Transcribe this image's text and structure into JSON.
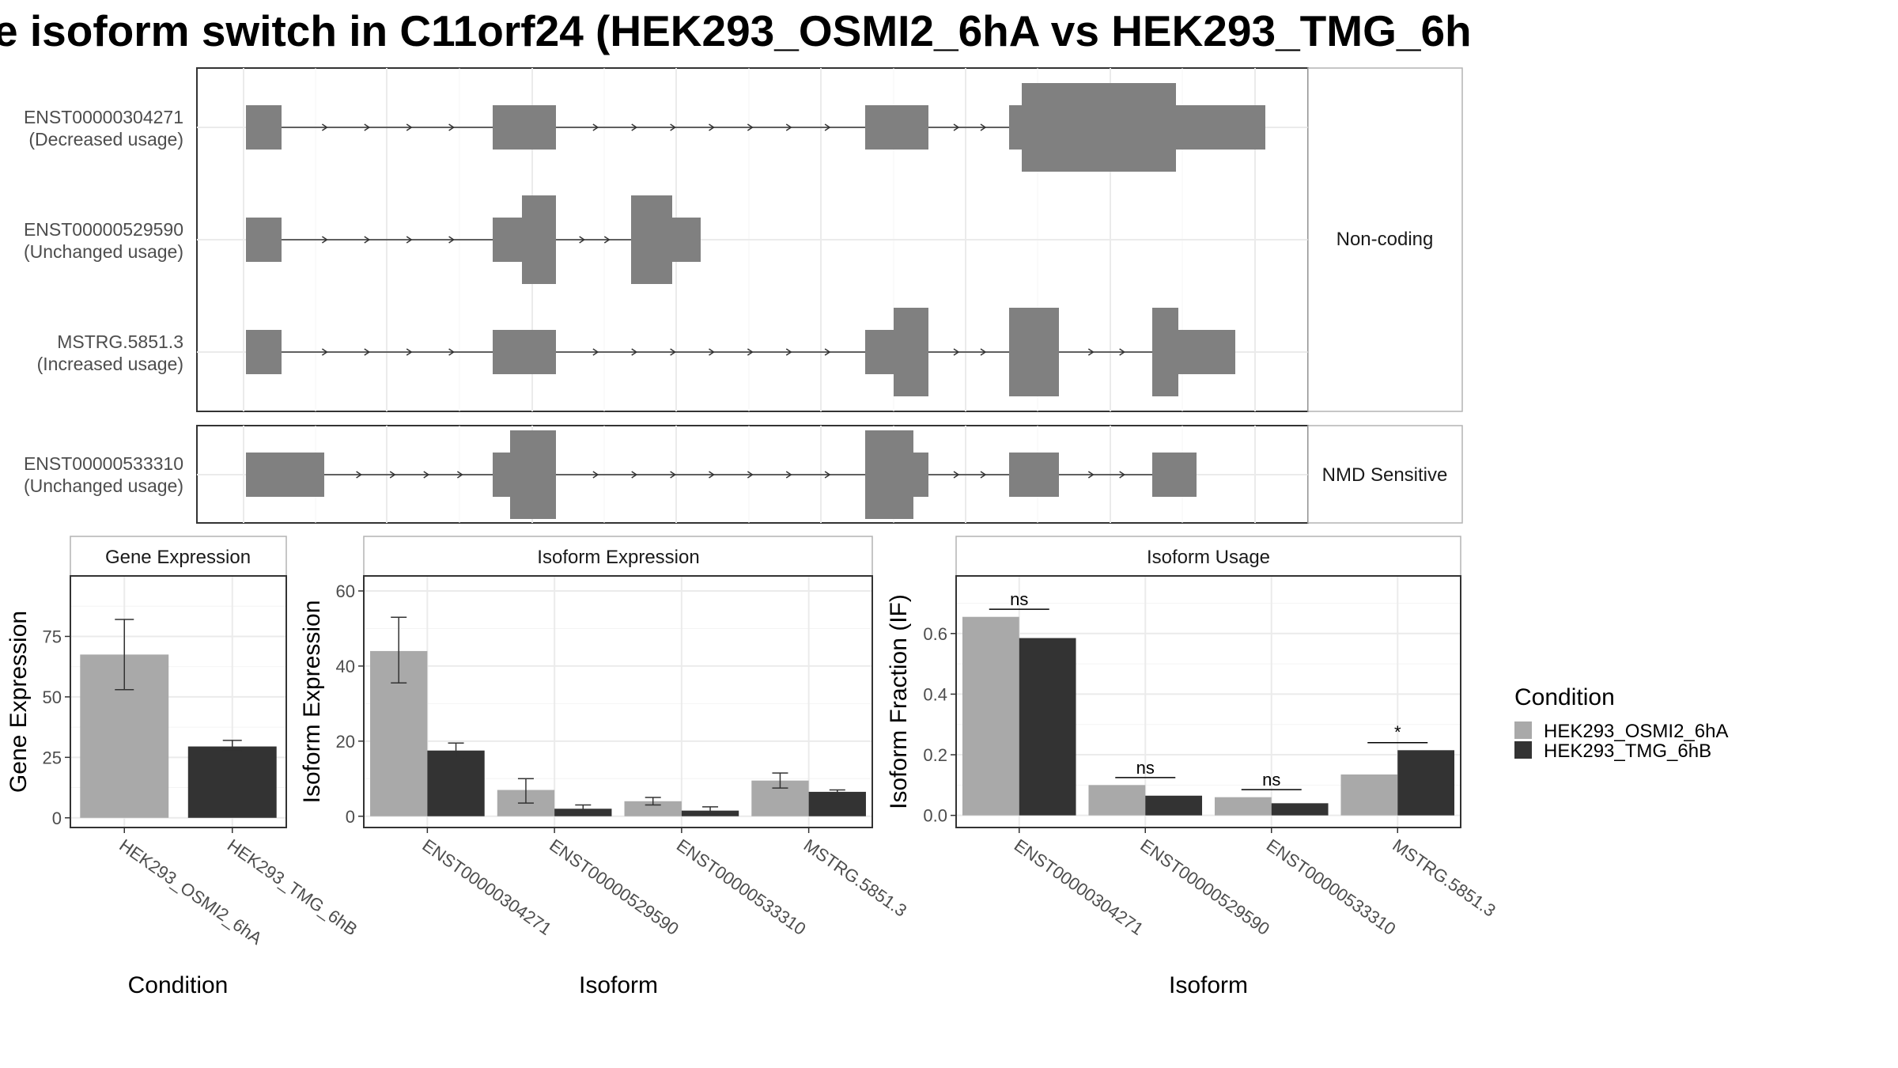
{
  "title": "e isoform switch in C11orf24 (HEK293_OSMI2_6hA vs HEK293_TMG_6h",
  "colors": {
    "condA": "#a9a9a9",
    "condB": "#333333",
    "exon": "#808080",
    "grid": "#ebebeb",
    "panel_border": "#333333",
    "strip_border": "#b3b3b3"
  },
  "structure": {
    "groups": [
      {
        "label": "Non-coding",
        "transcripts": [
          {
            "id": "ENST00000304271",
            "usage": "(Decreased usage)"
          },
          {
            "id": "ENST00000529590",
            "usage": "(Unchanged usage)"
          },
          {
            "id": "MSTRG.5851.3",
            "usage": "(Increased usage)"
          }
        ]
      },
      {
        "label": "NMD Sensitive",
        "transcripts": [
          {
            "id": "ENST00000533310",
            "usage": "(Unchanged usage)"
          }
        ]
      }
    ]
  },
  "legend": {
    "title": "Condition",
    "items": [
      "HEK293_OSMI2_6hA",
      "HEK293_TMG_6hB"
    ]
  },
  "chart_data": [
    {
      "type": "bar",
      "strip": "Gene Expression",
      "xlabel": "Condition",
      "ylabel": "Gene Expression",
      "categories": [
        "HEK293_OSMI2_6hA",
        "HEK293_TMG_6hB"
      ],
      "values": [
        67.5,
        29.5
      ],
      "errors": [
        [
          53,
          82
        ],
        [
          27.5,
          32
        ]
      ],
      "ylim": [
        -4,
        100
      ],
      "yticks": [
        0,
        25,
        50,
        75
      ]
    },
    {
      "type": "bar",
      "strip": "Isoform Expression",
      "xlabel": "Isoform",
      "ylabel": "Isoform Expression",
      "categories": [
        "ENST00000304271",
        "ENST00000529590",
        "ENST00000533310",
        "MSTRG.5851.3"
      ],
      "series": [
        {
          "name": "HEK293_OSMI2_6hA",
          "values": [
            44,
            7,
            4,
            9.5
          ],
          "errors": [
            [
              35.5,
              53
            ],
            [
              3.5,
              10
            ],
            [
              3,
              5
            ],
            [
              7.5,
              11.5
            ]
          ]
        },
        {
          "name": "HEK293_TMG_6hB",
          "values": [
            17.5,
            2,
            1.5,
            6.5
          ],
          "errors": [
            [
              15.5,
              19.5
            ],
            [
              1,
              3
            ],
            [
              0.5,
              2.5
            ],
            [
              5.5,
              7
            ]
          ]
        }
      ],
      "ylim": [
        -3,
        64
      ],
      "yticks": [
        0,
        20,
        40,
        60
      ]
    },
    {
      "type": "bar",
      "strip": "Isoform Usage",
      "xlabel": "Isoform",
      "ylabel": "Isoform Fraction (IF)",
      "categories": [
        "ENST00000304271",
        "ENST00000529590",
        "ENST00000533310",
        "MSTRG.5851.3"
      ],
      "series": [
        {
          "name": "HEK293_OSMI2_6hA",
          "values": [
            0.655,
            0.1,
            0.06,
            0.135
          ]
        },
        {
          "name": "HEK293_TMG_6hB",
          "values": [
            0.585,
            0.065,
            0.04,
            0.215
          ]
        }
      ],
      "significance": [
        "ns",
        "ns",
        "ns",
        "*"
      ],
      "ylim": [
        -0.04,
        0.79
      ],
      "yticks": [
        0.0,
        0.2,
        0.4,
        0.6
      ],
      "ytick_labels": [
        "0.0",
        "0.2",
        "0.4",
        "0.6"
      ]
    }
  ]
}
